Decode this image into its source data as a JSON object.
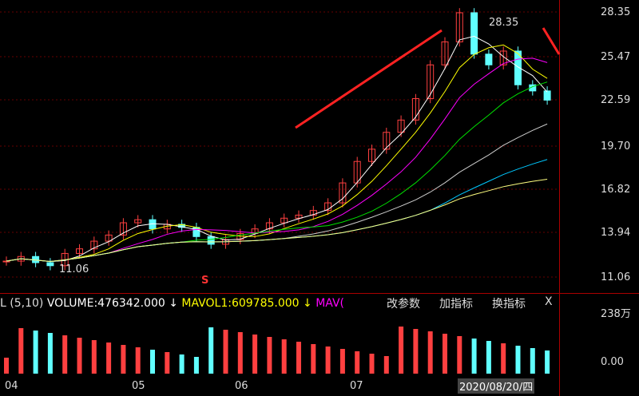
{
  "price_ticks": [
    "28.35",
    "25.47",
    "22.59",
    "19.70",
    "16.82",
    "13.94",
    "11.06"
  ],
  "volume_ticks": [
    "238万",
    "0.00"
  ],
  "high_label": "28.35",
  "low_label": "11.06",
  "signal": "S",
  "volume_header": {
    "prefix": "L  (5,10)",
    "vol": "VOLUME:476342.000",
    "mavol1": "MAVOL1:609785.000",
    "mavol2": "MAV("
  },
  "buttons": [
    "改参数",
    "加指标",
    "换指标",
    "X"
  ],
  "date_label": "2020/08/20/四",
  "x_ticks": [
    "04",
    "05",
    "06",
    "07"
  ],
  "chart_data": {
    "type": "candlestick",
    "months": [
      "04",
      "05",
      "06",
      "07"
    ],
    "close": [
      12.1,
      12.4,
      12.0,
      11.8,
      12.6,
      12.9,
      13.4,
      13.8,
      14.6,
      14.8,
      14.2,
      14.5,
      14.3,
      13.7,
      13.2,
      13.5,
      13.9,
      14.2,
      14.6,
      14.9,
      15.1,
      15.4,
      15.9,
      17.2,
      18.6,
      19.4,
      20.5,
      21.3,
      22.7,
      24.9,
      26.4,
      28.3,
      25.6,
      24.9,
      25.8,
      23.6,
      23.2,
      22.6
    ],
    "ma_colors": [
      "#ffffff",
      "#ffff00",
      "#ff00ff",
      "#00e000",
      "#cccccc",
      "#00c8ff",
      "#ffff80"
    ],
    "ylim": [
      10.6,
      28.9
    ]
  }
}
